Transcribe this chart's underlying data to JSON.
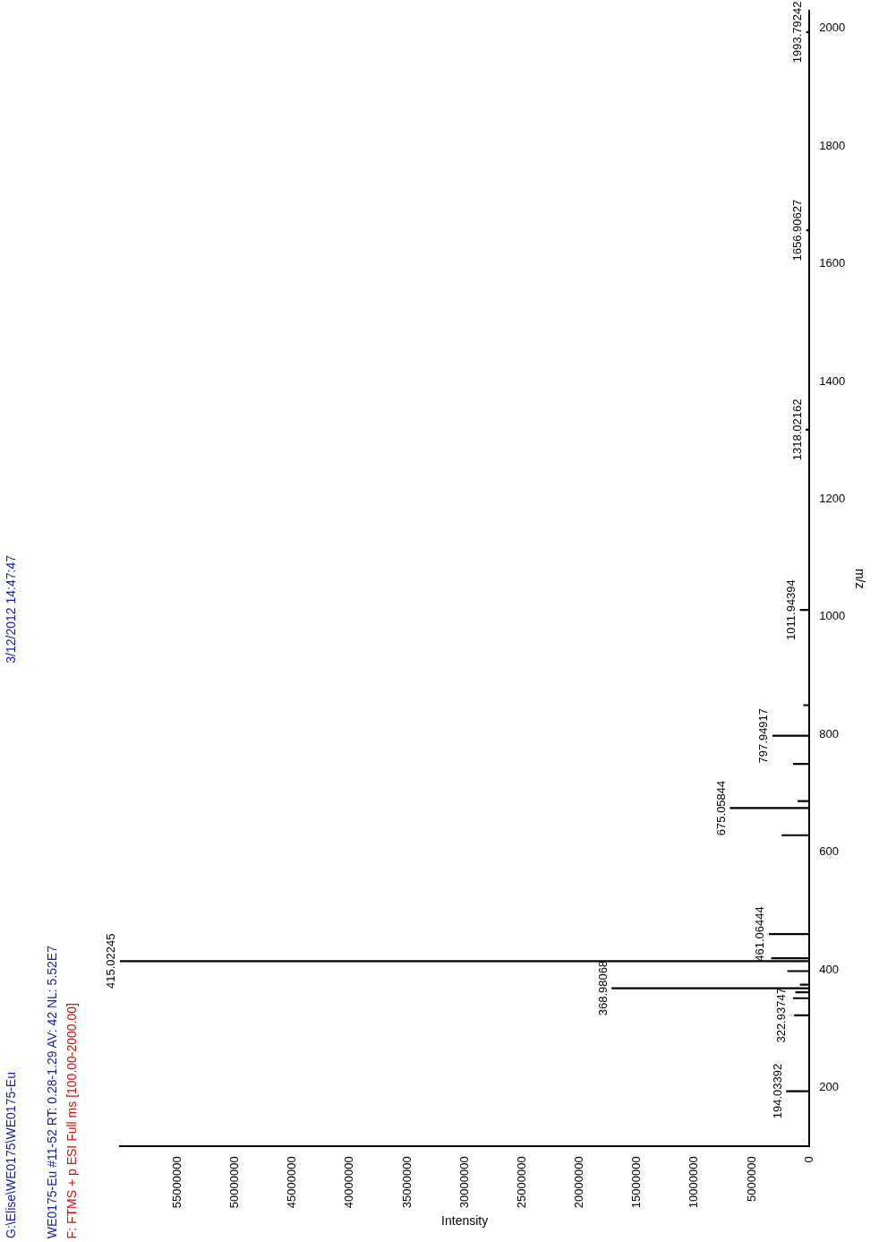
{
  "chart_data": {
    "type": "bar",
    "orientation": "horizontal",
    "title": "G:\\Elise\\WE0175\\WE0175-Eu",
    "subtitle": "3/12/2012 14:47:47",
    "xlabel": "Intensity",
    "ylabel": "m/z",
    "color": "#000000",
    "x": [
      194.03392,
      322.93747,
      352,
      362,
      368.98068,
      375,
      398,
      415.02245,
      420,
      461.06444,
      629,
      675.05844,
      687,
      750,
      797.94917,
      850,
      1011.94394,
      1318.02162,
      1656.90627,
      1993.79242
    ],
    "values": [
      2000000,
      1300000,
      1400000,
      1200000,
      17200000,
      800000,
      1900000,
      60000000,
      3300000,
      3500000,
      2400000,
      6900000,
      1000000,
      1400000,
      3200000,
      500000,
      800000,
      300000,
      250000,
      250000
    ],
    "xlim": [
      60000000,
      0
    ],
    "xticks": [
      0,
      5000000,
      10000000,
      15000000,
      20000000,
      25000000,
      30000000,
      35000000,
      40000000,
      45000000,
      50000000,
      55000000
    ],
    "ylim": [
      100,
      2030
    ],
    "yticks": [
      200,
      400,
      600,
      800,
      1000,
      1200,
      1400,
      1600,
      1800,
      2000
    ],
    "annotations": [
      "WE0175-Eu #11-52  RT: 0.28-1.29  AV: 42  NL: 5.52E7",
      "F: FTMS + p ESI Full ms [100.00-2000.00]",
      {
        "text": "194.03392",
        "x": 2000000,
        "y": 194.03392
      },
      {
        "text": "322.93747",
        "x": 1300000,
        "y": 322.93747
      },
      {
        "text": "368.98068",
        "x": 17200000,
        "y": 368.98068
      },
      {
        "text": "415.02245",
        "x": 60000000,
        "y": 415.02245
      },
      {
        "text": "461.06444",
        "x": 3500000,
        "y": 461.06444
      },
      {
        "text": "675.05844",
        "x": 6900000,
        "y": 675.05844
      },
      {
        "text": "797.94917",
        "x": 3200000,
        "y": 797.94917
      },
      {
        "text": "1011.94394",
        "x": 800000,
        "y": 1011.94394
      },
      {
        "text": "1318.02162",
        "x": 300000,
        "y": 1318.02162
      },
      {
        "text": "1656.90627",
        "x": 250000,
        "y": 1656.90627
      },
      {
        "text": "1993.79242",
        "x": 250000,
        "y": 1993.79242
      }
    ]
  }
}
